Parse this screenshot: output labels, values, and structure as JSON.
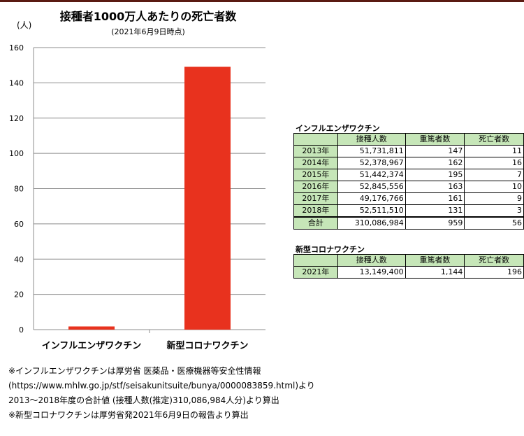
{
  "chart_data": {
    "type": "bar",
    "title": "接種者1000万人あたりの死亡者数",
    "subtitle": "(2021年6月9日時点)",
    "ylabel": "(人)",
    "categories": [
      "インフルエンザワクチン",
      "新型コロナワクチン"
    ],
    "values": [
      1.8,
      149.1
    ],
    "ylim": [
      0,
      160
    ],
    "yticks": [
      0,
      20,
      40,
      60,
      80,
      100,
      120,
      140,
      160
    ],
    "grid": true,
    "bar_color": "#e8321e"
  },
  "flu_table": {
    "title": "インフルエンザワクチン",
    "headers": [
      "",
      "接種人数",
      "重篤者数",
      "死亡者数"
    ],
    "rows": [
      [
        "2013年",
        "51,731,811",
        "147",
        "11"
      ],
      [
        "2014年",
        "52,378,967",
        "162",
        "16"
      ],
      [
        "2015年",
        "51,442,374",
        "195",
        "7"
      ],
      [
        "2016年",
        "52,845,556",
        "163",
        "10"
      ],
      [
        "2017年",
        "49,176,766",
        "161",
        "9"
      ],
      [
        "2018年",
        "52,511,510",
        "131",
        "3"
      ]
    ],
    "total": [
      "合計",
      "310,086,984",
      "959",
      "56"
    ]
  },
  "covid_table": {
    "title": "新型コロナワクチン",
    "headers": [
      "",
      "接種人数",
      "重篤者数",
      "死亡者数"
    ],
    "rows": [
      [
        "2021年",
        "13,149,400",
        "1,144",
        "196"
      ]
    ]
  },
  "notes": [
    "※インフルエンザワクチンは厚労省 医薬品・医療機器等安全性情報",
    "(https://www.mhlw.go.jp/stf/seisakunitsuite/bunya/0000083859.html)より",
    "2013～2018年度の合計値 (接種人数(推定)310,086,984人分)より算出",
    "※新型コロナワクチンは厚労省発2021年6月9日の報告より算出"
  ]
}
